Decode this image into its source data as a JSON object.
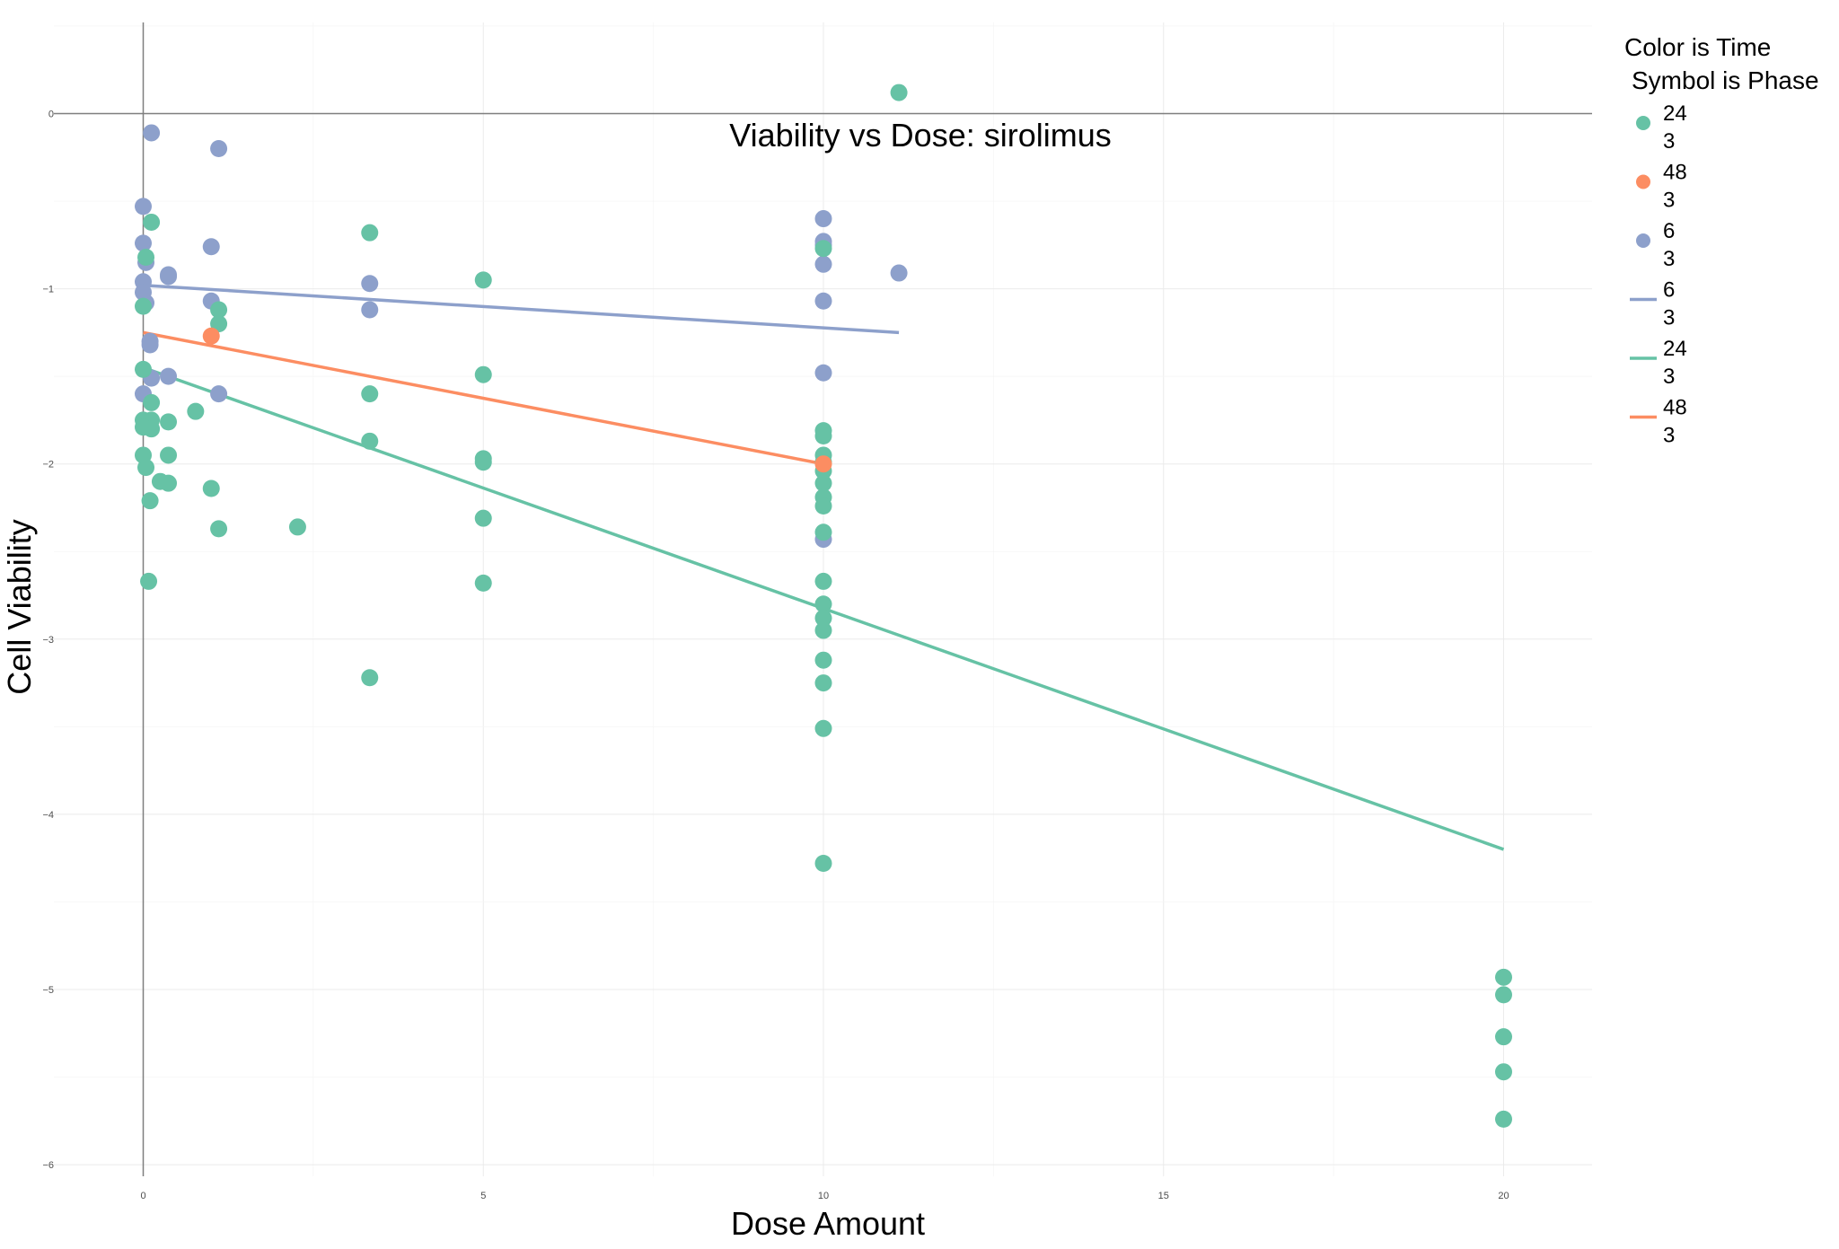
{
  "chart_data": {
    "type": "scatter",
    "title": "Viability vs Dose: sirolimus",
    "xlabel": "Dose Amount",
    "ylabel": "Cell Viability",
    "xlim": [
      -1.3,
      21.3
    ],
    "ylim": [
      -6.0,
      0.52
    ],
    "x_ticks": [
      0,
      5,
      10,
      15,
      20
    ],
    "y_ticks": [
      0,
      -1,
      -2,
      -3,
      -4,
      -5,
      -6
    ],
    "x_tick_labels": [
      "0",
      "5",
      "10",
      "15",
      "20"
    ],
    "y_tick_labels": [
      "0",
      "−1",
      "−2",
      "−3",
      "−4",
      "−5",
      "−6"
    ],
    "grid": true,
    "reference_lines": {
      "y": 0,
      "x": 0
    },
    "legend": {
      "position": "right",
      "title_line1": "Color is Time",
      "title_line2": "Symbol is Phase",
      "entries": [
        {
          "kind": "point",
          "time": "24",
          "phase": "3",
          "color": "#66c2a5"
        },
        {
          "kind": "point",
          "time": "48",
          "phase": "3",
          "color": "#fc8d62"
        },
        {
          "kind": "point",
          "time": "6",
          "phase": "3",
          "color": "#8da0cb"
        },
        {
          "kind": "line",
          "time": "6",
          "phase": "3",
          "color": "#8da0cb"
        },
        {
          "kind": "line",
          "time": "24",
          "phase": "3",
          "color": "#66c2a5"
        },
        {
          "kind": "line",
          "time": "48",
          "phase": "3",
          "color": "#fc8d62"
        }
      ]
    },
    "series": [
      {
        "time": "6",
        "color": "#8da0cb",
        "points": [
          [
            0.12,
            -0.11
          ],
          [
            1.11,
            -0.2
          ],
          [
            0.0,
            -0.53
          ],
          [
            0.0,
            -0.74
          ],
          [
            1.0,
            -0.76
          ],
          [
            0.04,
            -0.85
          ],
          [
            0.37,
            -0.92
          ],
          [
            0.37,
            -0.93
          ],
          [
            0.0,
            -0.96
          ],
          [
            0.0,
            -1.02
          ],
          [
            0.04,
            -1.08
          ],
          [
            1.0,
            -1.07
          ],
          [
            3.33,
            -0.97
          ],
          [
            3.33,
            -1.12
          ],
          [
            0.1,
            -1.3
          ],
          [
            0.1,
            -1.32
          ],
          [
            0.12,
            -1.51
          ],
          [
            0.37,
            -1.5
          ],
          [
            0.0,
            -1.6
          ],
          [
            1.11,
            -1.6
          ],
          [
            10.0,
            -0.6
          ],
          [
            10.0,
            -0.73
          ],
          [
            10.0,
            -0.75
          ],
          [
            10.0,
            -0.86
          ],
          [
            10.0,
            -1.07
          ],
          [
            10.0,
            -1.48
          ],
          [
            10.0,
            -2.43
          ],
          [
            11.11,
            -0.91
          ]
        ],
        "trend": [
          [
            0.0,
            -0.98
          ],
          [
            11.11,
            -1.25
          ]
        ]
      },
      {
        "time": "24",
        "color": "#66c2a5",
        "points": [
          [
            11.11,
            0.12
          ],
          [
            0.12,
            -0.62
          ],
          [
            3.33,
            -0.68
          ],
          [
            0.04,
            -0.82
          ],
          [
            5.0,
            -0.95
          ],
          [
            0.0,
            -1.1
          ],
          [
            1.11,
            -1.12
          ],
          [
            1.11,
            -1.2
          ],
          [
            0.0,
            -1.46
          ],
          [
            5.0,
            -1.49
          ],
          [
            0.12,
            -1.65
          ],
          [
            3.33,
            -1.6
          ],
          [
            0.77,
            -1.7
          ],
          [
            0.0,
            -1.75
          ],
          [
            0.12,
            -1.75
          ],
          [
            0.37,
            -1.76
          ],
          [
            0.0,
            -1.79
          ],
          [
            0.12,
            -1.8
          ],
          [
            3.33,
            -1.87
          ],
          [
            0.0,
            -1.95
          ],
          [
            0.37,
            -1.95
          ],
          [
            5.0,
            -1.97
          ],
          [
            5.0,
            -1.99
          ],
          [
            0.04,
            -2.02
          ],
          [
            0.25,
            -2.1
          ],
          [
            0.37,
            -2.11
          ],
          [
            1.0,
            -2.14
          ],
          [
            0.1,
            -2.21
          ],
          [
            5.0,
            -2.31
          ],
          [
            2.27,
            -2.36
          ],
          [
            1.11,
            -2.37
          ],
          [
            0.08,
            -2.67
          ],
          [
            5.0,
            -2.68
          ],
          [
            3.33,
            -3.22
          ],
          [
            10.0,
            -0.77
          ],
          [
            10.0,
            -1.81
          ],
          [
            10.0,
            -1.84
          ],
          [
            10.0,
            -1.95
          ],
          [
            10.0,
            -1.99
          ],
          [
            10.0,
            -2.04
          ],
          [
            10.0,
            -2.11
          ],
          [
            10.0,
            -2.19
          ],
          [
            10.0,
            -2.24
          ],
          [
            10.0,
            -2.39
          ],
          [
            10.0,
            -2.67
          ],
          [
            10.0,
            -2.8
          ],
          [
            10.0,
            -2.88
          ],
          [
            10.0,
            -2.95
          ],
          [
            10.0,
            -3.12
          ],
          [
            10.0,
            -3.25
          ],
          [
            10.0,
            -3.51
          ],
          [
            10.0,
            -4.28
          ],
          [
            20.0,
            -4.93
          ],
          [
            20.0,
            -5.03
          ],
          [
            20.0,
            -5.27
          ],
          [
            20.0,
            -5.47
          ],
          [
            20.0,
            -5.74
          ]
        ],
        "trend": [
          [
            0.0,
            -1.45
          ],
          [
            20.0,
            -4.2
          ]
        ]
      },
      {
        "time": "48",
        "color": "#fc8d62",
        "points": [
          [
            1.0,
            -1.27
          ],
          [
            10.0,
            -2.0
          ]
        ],
        "trend": [
          [
            0.0,
            -1.25
          ],
          [
            10.0,
            -2.0
          ]
        ]
      }
    ]
  }
}
